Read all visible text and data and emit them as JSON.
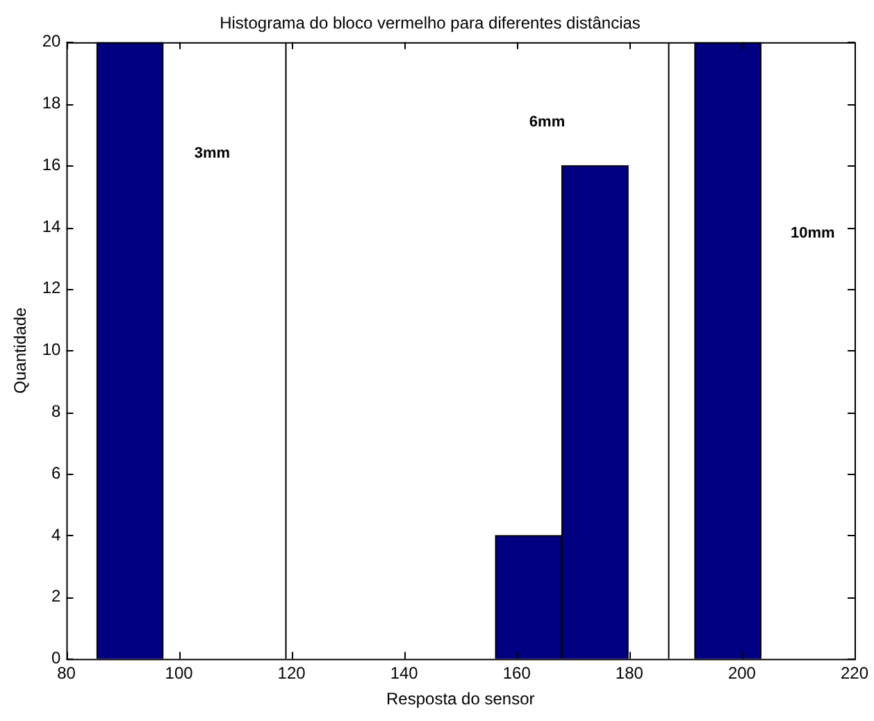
{
  "chart_data": {
    "type": "histogram",
    "title": "Histograma do bloco vermelho para diferentes distâncias",
    "xlabel": "Resposta do sensor",
    "ylabel": "Quantidade",
    "bins": [
      85.4,
      97.2,
      109,
      120.8,
      132.6,
      144.4,
      156.2,
      168,
      179.8,
      191.6,
      203.4
    ],
    "values": [
      20,
      0,
      0,
      0,
      0,
      0,
      4,
      16,
      0,
      20
    ],
    "color": "#000080",
    "xlim": [
      80,
      220
    ],
    "xticks": [
      80,
      100,
      120,
      140,
      160,
      180,
      200,
      220
    ],
    "ylim": [
      0,
      20
    ],
    "yticks": [
      0,
      2,
      4,
      6,
      8,
      10,
      12,
      14,
      16,
      18,
      20
    ],
    "grid": false,
    "legend": false,
    "ref_lines": [
      {
        "axis": "x",
        "value": 119,
        "color": "#000000"
      },
      {
        "axis": "x",
        "value": 187,
        "color": "#000000"
      }
    ],
    "annotations": [
      "3mm",
      "6mm",
      "10mm"
    ]
  }
}
